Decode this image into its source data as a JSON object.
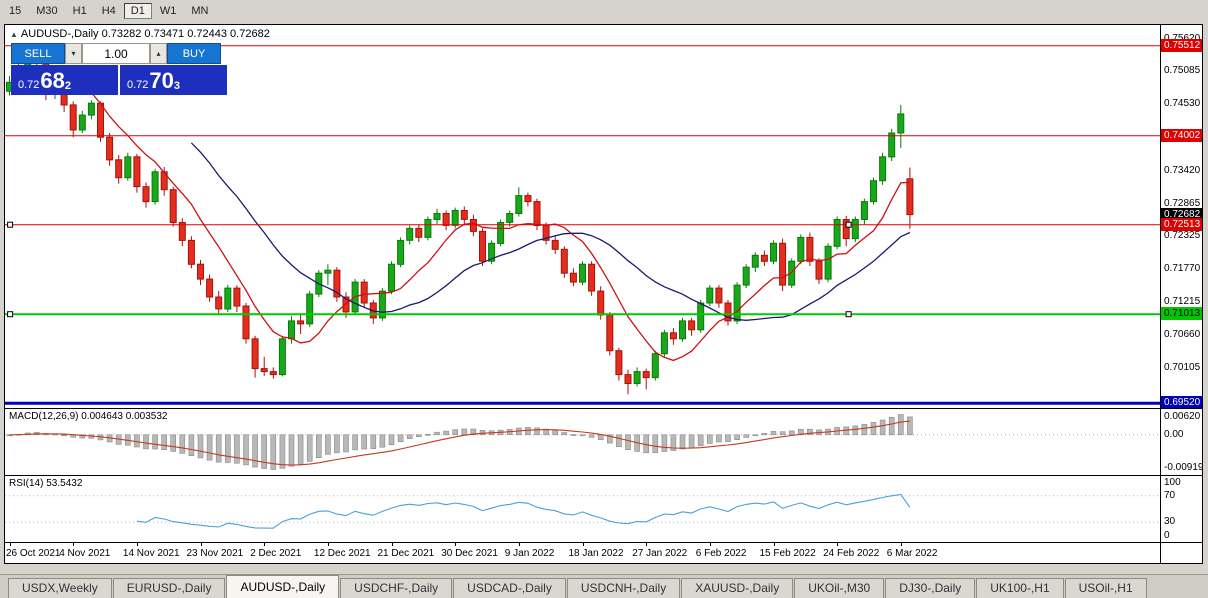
{
  "colors": {
    "up": "#19a819",
    "up_stroke": "#0a7a0a",
    "down": "#e22d1f",
    "down_stroke": "#a81208",
    "ma_fast": "#cc1111",
    "ma_slow": "#191970",
    "line_red": "#e00000",
    "line_green": "#00cc00",
    "line_blue": "#0000bb",
    "macd_bar": "#b8b8b8",
    "macd_bar_stroke": "#8a8a8a",
    "macd_signal": "#c23b22",
    "rsi_line": "#4aa0d8"
  },
  "toolbar": {
    "timeframes": [
      "15",
      "M30",
      "H1",
      "H4",
      "D1",
      "W1",
      "MN"
    ],
    "active": "D1"
  },
  "chart": {
    "collapse_icon": "▲",
    "title": "AUDUSD-,Daily 0.73282 0.73471 0.72443 0.72682"
  },
  "trade_panel": {
    "sell_label": "SELL",
    "buy_label": "BUY",
    "volume": "1.00",
    "dropdown_icon": "▾",
    "spinner_icon": "▴",
    "sell_price": {
      "small": "0.72",
      "big": "68",
      "sup": "2"
    },
    "buy_price": {
      "small": "0.72",
      "big": "70",
      "sup": "3"
    }
  },
  "price_axis": {
    "ticks": [
      "0.75620",
      "0.75085",
      "0.74530",
      "0.73420",
      "0.72865",
      "0.72325",
      "0.71770",
      "0.71215",
      "0.70660",
      "0.70105"
    ],
    "badges": [
      {
        "value": "0.75512",
        "price": 0.75512,
        "type": "red"
      },
      {
        "value": "0.74002",
        "price": 0.74002,
        "type": "red"
      },
      {
        "value": "0.72682",
        "price": 0.72682,
        "type": "black"
      },
      {
        "value": "0.72513",
        "price": 0.72513,
        "type": "red"
      },
      {
        "value": "0.71013",
        "price": 0.71013,
        "type": "green"
      },
      {
        "value": "0.69520",
        "price": 0.6952,
        "type": "blue"
      }
    ]
  },
  "hlines": [
    {
      "price": 0.75512,
      "color": "red",
      "width": 1,
      "handles": false
    },
    {
      "price": 0.74002,
      "color": "red",
      "width": 1,
      "handles": false
    },
    {
      "price": 0.72513,
      "color": "red",
      "width": 1,
      "handles": true
    },
    {
      "price": 0.71013,
      "color": "green",
      "width": 2,
      "handles": true
    },
    {
      "price": 0.6952,
      "color": "blue",
      "width": 3,
      "handles": false
    }
  ],
  "macd_panel": {
    "label": "MACD(12,26,9) 0.004643 0.003532",
    "axis_top": "0.00620",
    "axis_zero": "0.00",
    "axis_bottom": "-0.00919"
  },
  "rsi_panel": {
    "label": "RSI(14) 53.5432",
    "axis": [
      "100",
      "70",
      "30",
      "0"
    ],
    "levels": [
      70,
      30
    ]
  },
  "date_axis": {
    "labels": [
      "26 Oct 2021",
      "4 Nov 2021",
      "14 Nov 2021",
      "23 Nov 2021",
      "2 Dec 2021",
      "12 Dec 2021",
      "21 Dec 2021",
      "30 Dec 2021",
      "9 Jan 2022",
      "18 Jan 2022",
      "27 Jan 2022",
      "6 Feb 2022",
      "15 Feb 2022",
      "24 Feb 2022",
      "6 Mar 2022"
    ],
    "indices": [
      0,
      7,
      14,
      21,
      28,
      35,
      42,
      49,
      56,
      63,
      70,
      77,
      84,
      91,
      98
    ]
  },
  "tabs": {
    "items": [
      "USDX,Weekly",
      "EURUSD-,Daily",
      "AUDUSD-,Daily",
      "USDCHF-,Daily",
      "USDCAD-,Daily",
      "USDCNH-,Daily",
      "XAUUSD-,Daily",
      "UKOil-,M30",
      "DJ30-,Daily",
      "UK100-,H1",
      "USOil-,H1"
    ],
    "active": "AUDUSD-,Daily"
  },
  "chart_data": {
    "type": "candlestick",
    "symbol": "AUDUSD-",
    "timeframe": "Daily",
    "title": "AUDUSD-,Daily",
    "last_ohlc": {
      "open": 0.73282,
      "high": 0.73471,
      "low": 0.72443,
      "close": 0.72682
    },
    "price_range": [
      0.6944,
      0.7586
    ],
    "right_offset_slots": 27,
    "overlays": [
      {
        "name": "ma-fast",
        "type": "sma",
        "period": 8,
        "color": "ma_fast"
      },
      {
        "name": "ma-slow",
        "type": "sma",
        "period": 21,
        "color": "ma_slow"
      }
    ],
    "indicators": {
      "macd": {
        "fast": 12,
        "slow": 26,
        "signal": 9,
        "value": 0.004643,
        "signal_value": 0.003532
      },
      "rsi": {
        "period": 14,
        "value": 53.5432
      }
    },
    "candles": [
      [
        0.7475,
        0.75,
        0.7468,
        0.749
      ],
      [
        0.749,
        0.7522,
        0.7485,
        0.7512
      ],
      [
        0.7512,
        0.7553,
        0.7508,
        0.7545
      ],
      [
        0.7545,
        0.7551,
        0.7518,
        0.753
      ],
      [
        0.753,
        0.7536,
        0.746,
        0.747
      ],
      [
        0.747,
        0.7495,
        0.7462,
        0.7485
      ],
      [
        0.7485,
        0.749,
        0.744,
        0.7452
      ],
      [
        0.7452,
        0.7458,
        0.7398,
        0.741
      ],
      [
        0.741,
        0.7442,
        0.7405,
        0.7435
      ],
      [
        0.7435,
        0.746,
        0.7428,
        0.7455
      ],
      [
        0.7455,
        0.7458,
        0.739,
        0.7398
      ],
      [
        0.7398,
        0.7405,
        0.735,
        0.736
      ],
      [
        0.736,
        0.7368,
        0.732,
        0.733
      ],
      [
        0.733,
        0.7372,
        0.7325,
        0.7365
      ],
      [
        0.7365,
        0.737,
        0.7305,
        0.7315
      ],
      [
        0.7315,
        0.7322,
        0.728,
        0.729
      ],
      [
        0.729,
        0.7345,
        0.7285,
        0.734
      ],
      [
        0.734,
        0.7348,
        0.73,
        0.731
      ],
      [
        0.731,
        0.7315,
        0.7248,
        0.7255
      ],
      [
        0.7255,
        0.7262,
        0.7215,
        0.7225
      ],
      [
        0.7225,
        0.7232,
        0.7178,
        0.7185
      ],
      [
        0.7185,
        0.7192,
        0.715,
        0.716
      ],
      [
        0.716,
        0.7168,
        0.7122,
        0.713
      ],
      [
        0.713,
        0.714,
        0.71,
        0.711
      ],
      [
        0.711,
        0.715,
        0.7105,
        0.7145
      ],
      [
        0.7145,
        0.715,
        0.7105,
        0.7115
      ],
      [
        0.7115,
        0.712,
        0.7052,
        0.706
      ],
      [
        0.706,
        0.7065,
        0.6995,
        0.701
      ],
      [
        0.701,
        0.703,
        0.6998,
        0.7005
      ],
      [
        0.7005,
        0.7012,
        0.6993,
        0.7
      ],
      [
        0.7,
        0.7065,
        0.6997,
        0.706
      ],
      [
        0.706,
        0.7098,
        0.7052,
        0.709
      ],
      [
        0.709,
        0.71,
        0.7068,
        0.7085
      ],
      [
        0.7085,
        0.714,
        0.708,
        0.7135
      ],
      [
        0.7135,
        0.7175,
        0.713,
        0.717
      ],
      [
        0.717,
        0.7185,
        0.715,
        0.7175
      ],
      [
        0.7175,
        0.718,
        0.7122,
        0.713
      ],
      [
        0.713,
        0.7138,
        0.7095,
        0.7105
      ],
      [
        0.7105,
        0.716,
        0.71,
        0.7155
      ],
      [
        0.7155,
        0.716,
        0.7112,
        0.712
      ],
      [
        0.712,
        0.7125,
        0.7085,
        0.7095
      ],
      [
        0.7095,
        0.7145,
        0.709,
        0.714
      ],
      [
        0.714,
        0.719,
        0.7135,
        0.7185
      ],
      [
        0.7185,
        0.723,
        0.718,
        0.7225
      ],
      [
        0.7225,
        0.725,
        0.7218,
        0.7245
      ],
      [
        0.7245,
        0.7252,
        0.7222,
        0.723
      ],
      [
        0.723,
        0.7265,
        0.7225,
        0.726
      ],
      [
        0.726,
        0.7278,
        0.7252,
        0.727
      ],
      [
        0.727,
        0.7275,
        0.7242,
        0.725
      ],
      [
        0.725,
        0.728,
        0.7245,
        0.7275
      ],
      [
        0.7275,
        0.7282,
        0.7252,
        0.726
      ],
      [
        0.726,
        0.7268,
        0.7232,
        0.724
      ],
      [
        0.724,
        0.7245,
        0.7182,
        0.719
      ],
      [
        0.719,
        0.7225,
        0.7185,
        0.722
      ],
      [
        0.722,
        0.726,
        0.7215,
        0.7255
      ],
      [
        0.7255,
        0.7275,
        0.7248,
        0.727
      ],
      [
        0.727,
        0.7314,
        0.7265,
        0.73
      ],
      [
        0.73,
        0.7305,
        0.7282,
        0.729
      ],
      [
        0.729,
        0.7295,
        0.7242,
        0.725
      ],
      [
        0.725,
        0.7255,
        0.7218,
        0.7225
      ],
      [
        0.7225,
        0.7232,
        0.7202,
        0.721
      ],
      [
        0.721,
        0.7215,
        0.7162,
        0.717
      ],
      [
        0.717,
        0.7178,
        0.7148,
        0.7155
      ],
      [
        0.7155,
        0.719,
        0.715,
        0.7185
      ],
      [
        0.7185,
        0.719,
        0.7132,
        0.714
      ],
      [
        0.714,
        0.7148,
        0.7092,
        0.71
      ],
      [
        0.71,
        0.7105,
        0.7032,
        0.704
      ],
      [
        0.704,
        0.7045,
        0.699,
        0.7
      ],
      [
        0.7,
        0.7008,
        0.6967,
        0.6985
      ],
      [
        0.6985,
        0.7012,
        0.698,
        0.7005
      ],
      [
        0.7005,
        0.701,
        0.6975,
        0.6995
      ],
      [
        0.6995,
        0.704,
        0.699,
        0.7035
      ],
      [
        0.7035,
        0.7075,
        0.703,
        0.707
      ],
      [
        0.707,
        0.7078,
        0.705,
        0.706
      ],
      [
        0.706,
        0.7095,
        0.7055,
        0.709
      ],
      [
        0.709,
        0.7095,
        0.7065,
        0.7075
      ],
      [
        0.7075,
        0.7125,
        0.707,
        0.712
      ],
      [
        0.712,
        0.715,
        0.7115,
        0.7145
      ],
      [
        0.7145,
        0.715,
        0.7112,
        0.712
      ],
      [
        0.712,
        0.7125,
        0.7082,
        0.709
      ],
      [
        0.709,
        0.7155,
        0.7085,
        0.715
      ],
      [
        0.715,
        0.7185,
        0.7145,
        0.718
      ],
      [
        0.718,
        0.7205,
        0.7172,
        0.72
      ],
      [
        0.72,
        0.7208,
        0.7182,
        0.719
      ],
      [
        0.719,
        0.7225,
        0.7185,
        0.722
      ],
      [
        0.722,
        0.7228,
        0.714,
        0.715
      ],
      [
        0.715,
        0.7195,
        0.7145,
        0.719
      ],
      [
        0.719,
        0.7235,
        0.7185,
        0.723
      ],
      [
        0.723,
        0.7238,
        0.7182,
        0.719
      ],
      [
        0.719,
        0.7195,
        0.7152,
        0.716
      ],
      [
        0.716,
        0.722,
        0.7155,
        0.7215
      ],
      [
        0.7215,
        0.7265,
        0.721,
        0.726
      ],
      [
        0.726,
        0.7266,
        0.7215,
        0.7228
      ],
      [
        0.7228,
        0.7265,
        0.7222,
        0.726
      ],
      [
        0.726,
        0.7295,
        0.7252,
        0.729
      ],
      [
        0.729,
        0.733,
        0.7285,
        0.7325
      ],
      [
        0.7325,
        0.7372,
        0.7318,
        0.7365
      ],
      [
        0.7365,
        0.7412,
        0.7358,
        0.7405
      ],
      [
        0.7405,
        0.7452,
        0.738,
        0.7437
      ],
      [
        0.73282,
        0.73471,
        0.72443,
        0.72682
      ]
    ]
  }
}
